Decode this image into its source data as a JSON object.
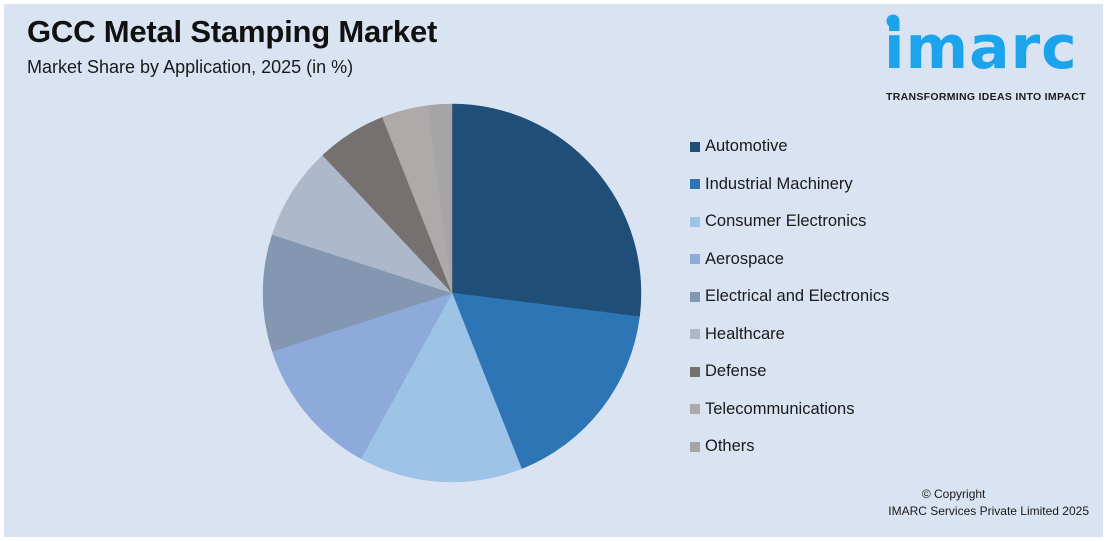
{
  "header": {
    "title": "GCC Metal Stamping Market",
    "subtitle": "Market Share by Application, 2025 (in %)"
  },
  "logo": {
    "word": "imarc",
    "tagline": "TRANSFORMING IDEAS INTO IMPACT",
    "color": "#1ba3ec"
  },
  "footer": {
    "copyright_line1": "© Copyright",
    "copyright_line2": "IMARC Services Private Limited 2025"
  },
  "chart_data": {
    "type": "pie",
    "title": "GCC Metal Stamping Market",
    "subtitle": "Market Share by Application, 2025 (in %)",
    "start_angle": "12 o'clock, clockwise",
    "legend_position": "right",
    "categories": [
      "Automotive",
      "Industrial Machinery",
      "Consumer Electronics",
      "Aerospace",
      "Electrical and Electronics",
      "Healthcare",
      "Defense",
      "Telecommunications",
      "Others"
    ],
    "values": [
      27,
      17,
      14,
      12,
      10,
      8,
      6,
      4,
      2
    ],
    "colors": [
      "#1f4e79",
      "#2e75b6",
      "#9dc3e6",
      "#8eaadb",
      "#8497b0",
      "#adb9ca",
      "#767171",
      "#aeaaaa",
      "#a5a5a5"
    ]
  },
  "legend": {
    "items": [
      {
        "label": "Automotive",
        "color": "#1f4e79"
      },
      {
        "label": "Industrial Machinery",
        "color": "#2e75b6"
      },
      {
        "label": "Consumer Electronics",
        "color": "#9dc3e6"
      },
      {
        "label": "Aerospace",
        "color": "#8eaadb"
      },
      {
        "label": "Electrical and Electronics",
        "color": "#8497b0"
      },
      {
        "label": "Healthcare",
        "color": "#adb9ca"
      },
      {
        "label": "Defense",
        "color": "#767171"
      },
      {
        "label": "Telecommunications",
        "color": "#aeaaaa"
      },
      {
        "label": "Others",
        "color": "#a5a5a5"
      }
    ]
  }
}
